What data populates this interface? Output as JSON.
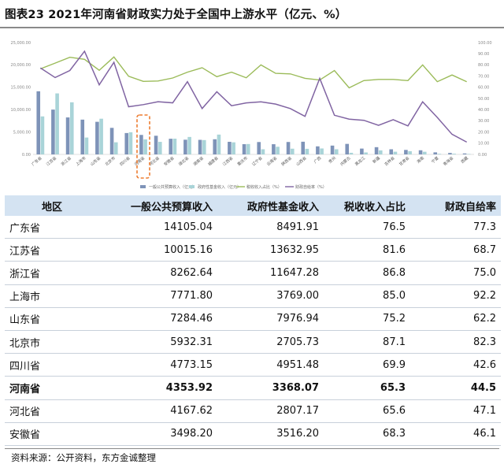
{
  "title": "图表23   2021年河南省财政实力处于全国中上游水平（亿元、%）",
  "chart_data": {
    "type": "bar",
    "categories": [
      "广东省",
      "江苏省",
      "浙江省",
      "上海市",
      "山东省",
      "北京市",
      "四川省",
      "河南省",
      "河北省",
      "安徽省",
      "湖北省",
      "湖南省",
      "福建省",
      "江西省",
      "重庆市",
      "辽宁省",
      "云南省",
      "陕西省",
      "山西省",
      "广西",
      "贵州",
      "内蒙古",
      "黑龙江",
      "新疆",
      "吉林省",
      "甘肃省",
      "海南",
      "宁夏",
      "青海省",
      "西藏"
    ],
    "ylim_left": [
      0,
      25000
    ],
    "yticks_left": [
      "0.00",
      "5,000.00",
      "10,000.00",
      "15,000.00",
      "20,000.00",
      "25,000.00"
    ],
    "ylim_right": [
      0,
      100
    ],
    "yticks_right": [
      "0.00",
      "10.00",
      "20.00",
      "30.00",
      "40.00",
      "50.00",
      "60.00",
      "70.00",
      "80.00",
      "90.00",
      "100.00"
    ],
    "series": [
      {
        "name": "一般公共预算收入（亿元）",
        "axis": "left",
        "type": "bar",
        "color": "#7e93b8",
        "values": [
          14105.04,
          10015.16,
          8262.64,
          7771.8,
          7284.46,
          5932.31,
          4773.15,
          4353.92,
          4167.62,
          3498.2,
          3283,
          3251,
          3384,
          2813,
          2285,
          2765,
          2278,
          2775,
          2835,
          1800,
          1969,
          2350,
          1301,
          1618,
          1144,
          1002,
          922,
          460,
          329,
          216
        ]
      },
      {
        "name": "政府性基金收入（亿元）",
        "axis": "left",
        "type": "bar",
        "color": "#a9d4d8",
        "values": [
          8491.91,
          13632.95,
          11647.28,
          3769.0,
          7976.94,
          2705.73,
          4951.48,
          3368.07,
          2807.17,
          3516.2,
          3900,
          3200,
          4430,
          2700,
          2320,
          1150,
          1710,
          1280,
          1250,
          1330,
          1150,
          360,
          440,
          900,
          600,
          720,
          590,
          130,
          160,
          100
        ]
      },
      {
        "name": "税收收入占比（%）",
        "axis": "right",
        "type": "line",
        "color": "#9bbb59",
        "values": [
          76.5,
          81.6,
          86.8,
          85.0,
          75.2,
          87.1,
          69.9,
          65.3,
          65.6,
          68.3,
          73.5,
          77.5,
          69.5,
          73.5,
          68.5,
          80.0,
          72.5,
          72.0,
          68.0,
          66.5,
          75.0,
          59.5,
          66.0,
          67.0,
          67.0,
          66.0,
          80.0,
          65.0,
          71.0,
          65.0
        ]
      },
      {
        "name": "财政自给率（%）",
        "axis": "right",
        "type": "line",
        "color": "#8064a2",
        "values": [
          77.3,
          68.7,
          75.0,
          92.2,
          62.2,
          82.3,
          42.6,
          44.5,
          47.1,
          46.1,
          65.0,
          41.0,
          56.0,
          43.5,
          46.0,
          47.0,
          45.0,
          41.0,
          34.0,
          68.0,
          35.0,
          31.5,
          30.5,
          26.0,
          31.0,
          25.5,
          47.0,
          33.0,
          18.0,
          11.0
        ]
      }
    ],
    "highlight_category": "河南省"
  },
  "table": {
    "headers": [
      "地区",
      "一般公共预算收入",
      "政府性基金收入",
      "税收收入占比",
      "财政自给率"
    ],
    "rows": [
      [
        "广东省",
        "14105.04",
        "8491.91",
        "76.5",
        "77.3"
      ],
      [
        "江苏省",
        "10015.16",
        "13632.95",
        "81.6",
        "68.7"
      ],
      [
        "浙江省",
        "8262.64",
        "11647.28",
        "86.8",
        "75.0"
      ],
      [
        "上海市",
        "7771.80",
        "3769.00",
        "85.0",
        "92.2"
      ],
      [
        "山东省",
        "7284.46",
        "7976.94",
        "75.2",
        "62.2"
      ],
      [
        "北京市",
        "5932.31",
        "2705.73",
        "87.1",
        "82.3"
      ],
      [
        "四川省",
        "4773.15",
        "4951.48",
        "69.9",
        "42.6"
      ],
      [
        "河南省",
        "4353.92",
        "3368.07",
        "65.3",
        "44.5"
      ],
      [
        "河北省",
        "4167.62",
        "2807.17",
        "65.6",
        "47.1"
      ],
      [
        "安徽省",
        "3498.20",
        "3516.20",
        "68.3",
        "46.1"
      ]
    ],
    "highlight_row": 7
  },
  "source": "资料来源：公开资料，东方金诚整理"
}
